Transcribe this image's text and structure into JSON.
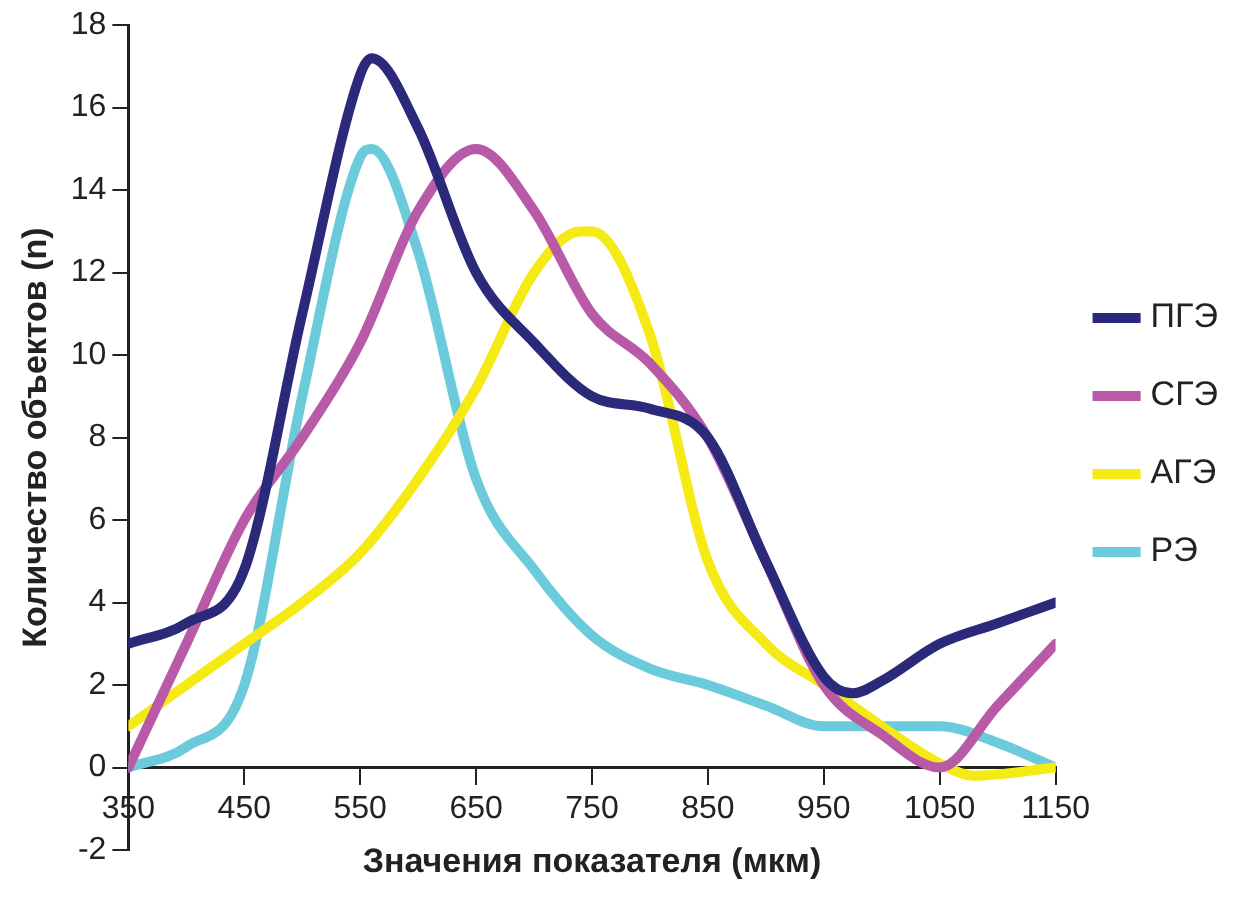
{
  "chart_data": {
    "type": "line",
    "xlabel": "Значения показателя (мкм)",
    "ylabel": "Количество объектов (n)",
    "xlim": [
      350,
      1150
    ],
    "xticks": [
      350,
      450,
      550,
      650,
      750,
      850,
      950,
      1050,
      1150
    ],
    "ylim": [
      -2,
      18
    ],
    "yticks": [
      -2,
      0,
      2,
      4,
      6,
      8,
      10,
      12,
      14,
      16,
      18
    ],
    "grid": false,
    "legend": "right",
    "marker": "none",
    "line_style": "solid",
    "series": [
      {
        "name": "ПГЭ",
        "color": "#2b2a7a",
        "x": [
          350,
          400,
          450,
          500,
          550,
          560,
          600,
          650,
          700,
          750,
          800,
          850,
          900,
          950,
          975,
          1000,
          1050,
          1100,
          1150
        ],
        "values": [
          3,
          3.5,
          4.8,
          11,
          16.8,
          17.2,
          15.5,
          12,
          10.3,
          9,
          8.7,
          8,
          5,
          2.2,
          1.8,
          2.1,
          3,
          3.5,
          4
        ]
      },
      {
        "name": "СГЭ",
        "color": "#b85aa8",
        "x": [
          350,
          400,
          450,
          500,
          550,
          600,
          650,
          700,
          750,
          800,
          850,
          900,
          950,
          1000,
          1050,
          1100,
          1150
        ],
        "values": [
          0,
          3,
          6,
          8,
          10.3,
          13.5,
          15,
          13.5,
          11,
          9.8,
          8,
          5,
          2,
          0.8,
          0,
          1.5,
          3
        ]
      },
      {
        "name": "АГЭ",
        "color": "#f5ea14",
        "x": [
          350,
          400,
          450,
          500,
          550,
          600,
          650,
          700,
          740,
          750,
          800,
          850,
          900,
          950,
          1000,
          1050,
          1080,
          1150
        ],
        "values": [
          1,
          2,
          3,
          4,
          5.2,
          7,
          9.2,
          12,
          13,
          13,
          10.5,
          5,
          3,
          2,
          1,
          0.1,
          -0.2,
          0
        ]
      },
      {
        "name": "РЭ",
        "color": "#6ccbdb",
        "x": [
          350,
          400,
          450,
          500,
          550,
          560,
          600,
          650,
          700,
          750,
          800,
          850,
          900,
          950,
          1000,
          1050,
          1100,
          1150
        ],
        "values": [
          0,
          0.5,
          2,
          9,
          14.8,
          15,
          12.5,
          7,
          4.8,
          3.2,
          2.4,
          2,
          1.5,
          1,
          1,
          1,
          0.6,
          0
        ]
      }
    ]
  }
}
